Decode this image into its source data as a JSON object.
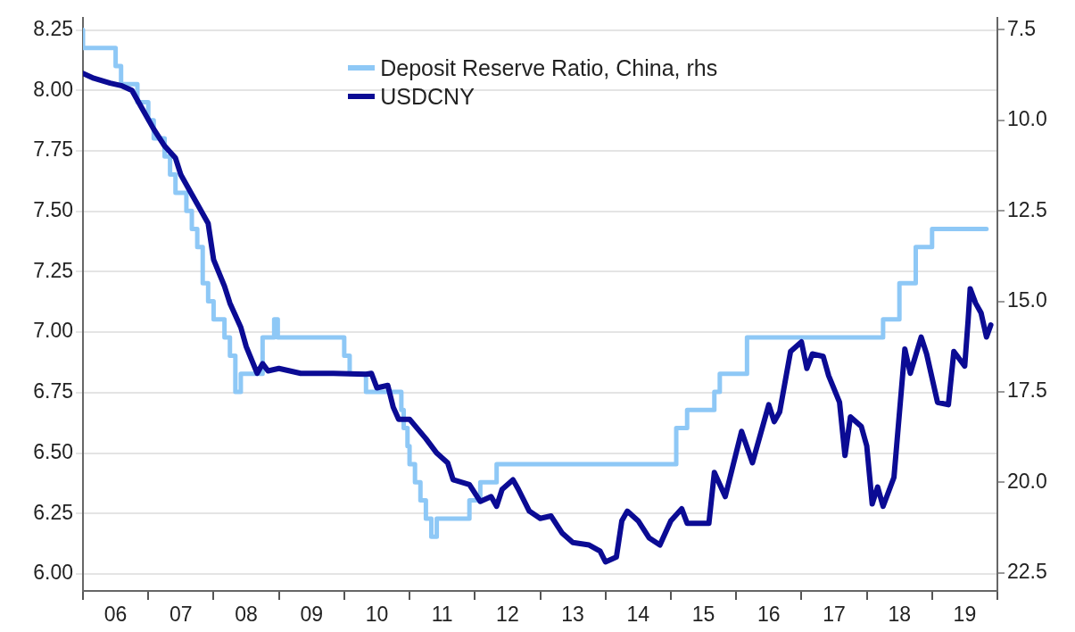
{
  "chart_data": {
    "type": "line",
    "xlim": [
      "2006-01",
      "2020-01"
    ],
    "xticks": [
      {
        "value": "2006-01",
        "label": null
      },
      {
        "value": "2006-07",
        "label": "06"
      },
      {
        "value": "2007-01",
        "label": null
      },
      {
        "value": "2007-07",
        "label": "07"
      },
      {
        "value": "2008-01",
        "label": null
      },
      {
        "value": "2008-07",
        "label": "08"
      },
      {
        "value": "2009-01",
        "label": null
      },
      {
        "value": "2009-07",
        "label": "09"
      },
      {
        "value": "2010-01",
        "label": null
      },
      {
        "value": "2010-07",
        "label": "10"
      },
      {
        "value": "2011-01",
        "label": null
      },
      {
        "value": "2011-07",
        "label": "11"
      },
      {
        "value": "2012-01",
        "label": null
      },
      {
        "value": "2012-07",
        "label": "12"
      },
      {
        "value": "2013-01",
        "label": null
      },
      {
        "value": "2013-07",
        "label": "13"
      },
      {
        "value": "2014-01",
        "label": null
      },
      {
        "value": "2014-07",
        "label": "14"
      },
      {
        "value": "2015-01",
        "label": null
      },
      {
        "value": "2015-07",
        "label": "15"
      },
      {
        "value": "2016-01",
        "label": null
      },
      {
        "value": "2016-07",
        "label": "16"
      },
      {
        "value": "2017-01",
        "label": null
      },
      {
        "value": "2017-07",
        "label": "17"
      },
      {
        "value": "2018-01",
        "label": null
      },
      {
        "value": "2018-07",
        "label": "18"
      },
      {
        "value": "2019-01",
        "label": null
      },
      {
        "value": "2019-07",
        "label": "19"
      },
      {
        "value": "2020-01",
        "label": null
      }
    ],
    "ylim": [
      5.93,
      8.3
    ],
    "yticks": [
      {
        "value": 6.0,
        "label": "6.00"
      },
      {
        "value": 6.25,
        "label": "6.25"
      },
      {
        "value": 6.5,
        "label": "6.50"
      },
      {
        "value": 6.75,
        "label": "6.75"
      },
      {
        "value": 7.0,
        "label": "7.00"
      },
      {
        "value": 7.25,
        "label": "7.25"
      },
      {
        "value": 7.5,
        "label": "7.50"
      },
      {
        "value": 7.75,
        "label": "7.75"
      },
      {
        "value": 8.0,
        "label": "8.00"
      },
      {
        "value": 8.25,
        "label": "8.25"
      }
    ],
    "y2lim": [
      23.0,
      7.17
    ],
    "y2ticks": [
      {
        "value": 7.5,
        "label": "7.5"
      },
      {
        "value": 10,
        "label": "10.0"
      },
      {
        "value": 12.5,
        "label": "12.5"
      },
      {
        "value": 15,
        "label": "15.0"
      },
      {
        "value": 17.5,
        "label": "17.5"
      },
      {
        "value": 20,
        "label": "20.0"
      },
      {
        "value": 22.5,
        "label": "22.5"
      }
    ],
    "grid": "y",
    "legend": "top",
    "series": [
      {
        "name": "Deposit Reserve Ratio, China, rhs",
        "type": "step",
        "axis": "y2",
        "color": "#8ec8f6",
        "x": [
          "2006-01",
          "2006-07",
          "2006-08",
          "2006-11",
          "2007-01",
          "2007-02",
          "2007-04",
          "2007-05",
          "2007-06",
          "2007-08",
          "2007-09",
          "2007-10",
          "2007-11",
          "2007-12",
          "2008-01",
          "2008-03",
          "2008-04",
          "2008-05",
          "2008-06",
          "2008-10",
          "2008-12-05",
          "2008-12-25",
          "2010-01",
          "2010-02",
          "2010-05",
          "2010-11-16",
          "2010-11-29",
          "2010-12-20",
          "2011-01",
          "2011-02",
          "2011-03",
          "2011-04",
          "2011-05",
          "2011-06",
          "2011-12",
          "2012-02",
          "2012-05",
          "2015-02",
          "2015-04",
          "2015-09",
          "2015-10",
          "2016-03",
          "2018-04",
          "2018-07",
          "2018-10",
          "2019-01",
          "2019-09",
          "2019-11"
        ],
        "values": [
          7.5,
          8.0,
          8.5,
          9.0,
          9.5,
          10.0,
          10.5,
          11.0,
          11.5,
          12.0,
          12.5,
          13.0,
          13.5,
          14.5,
          15.0,
          15.5,
          16.0,
          16.5,
          17.5,
          17.0,
          16.0,
          15.5,
          16.0,
          16.5,
          17.0,
          17.5,
          18.0,
          18.5,
          19.0,
          19.5,
          20.0,
          20.5,
          21.0,
          21.5,
          21.0,
          20.5,
          20.0,
          19.5,
          18.5,
          18.0,
          17.5,
          17.0,
          16.0,
          15.5,
          14.5,
          13.5,
          13.0,
          13.0
        ]
      },
      {
        "name": "USDCNY",
        "color": "#0b0b94",
        "x": [
          "2006-01",
          "2006-03",
          "2006-06",
          "2006-08",
          "2006-10",
          "2006-12",
          "2007-02",
          "2007-04",
          "2007-06",
          "2007-07",
          "2007-09",
          "2007-10",
          "2007-12",
          "2008-01",
          "2008-03",
          "2008-04",
          "2008-06",
          "2008-07",
          "2008-09",
          "2008-10",
          "2008-11",
          "2009-01",
          "2009-05",
          "2009-11",
          "2010-05",
          "2010-06",
          "2010-07",
          "2010-09",
          "2010-10",
          "2010-11",
          "2011-01",
          "2011-04",
          "2011-06",
          "2011-08",
          "2011-09",
          "2011-12",
          "2012-02",
          "2012-04",
          "2012-05",
          "2012-06",
          "2012-08",
          "2012-09",
          "2012-11",
          "2013-01",
          "2013-03",
          "2013-05",
          "2013-07",
          "2013-10",
          "2013-12",
          "2014-01",
          "2014-03",
          "2014-04",
          "2014-05",
          "2014-07",
          "2014-09",
          "2014-11",
          "2015-01",
          "2015-03",
          "2015-04",
          "2015-08",
          "2015-09",
          "2015-11",
          "2016-02",
          "2016-04",
          "2016-07",
          "2016-08",
          "2016-09",
          "2016-11",
          "2017-01",
          "2017-02",
          "2017-03",
          "2017-05",
          "2017-06",
          "2017-08",
          "2017-09",
          "2017-10",
          "2017-12",
          "2018-01",
          "2018-02",
          "2018-03",
          "2018-04",
          "2018-06",
          "2018-08",
          "2018-09",
          "2018-11",
          "2018-12",
          "2019-02",
          "2019-04",
          "2019-05",
          "2019-07",
          "2019-07-20",
          "2019-08",
          "2019-09",
          "2019-10",
          "2019-11",
          "2019-11-25"
        ],
        "values": [
          8.07,
          8.05,
          8.03,
          8.02,
          8.0,
          7.92,
          7.84,
          7.77,
          7.72,
          7.65,
          7.57,
          7.53,
          7.45,
          7.3,
          7.19,
          7.12,
          7.02,
          6.94,
          6.83,
          6.87,
          6.84,
          6.85,
          6.83,
          6.83,
          6.826,
          6.83,
          6.77,
          6.78,
          6.69,
          6.64,
          6.64,
          6.56,
          6.5,
          6.46,
          6.39,
          6.37,
          6.3,
          6.32,
          6.28,
          6.35,
          6.39,
          6.35,
          6.26,
          6.23,
          6.24,
          6.17,
          6.13,
          6.12,
          6.095,
          6.05,
          6.07,
          6.22,
          6.26,
          6.22,
          6.15,
          6.12,
          6.22,
          6.27,
          6.21,
          6.21,
          6.42,
          6.32,
          6.59,
          6.46,
          6.7,
          6.63,
          6.67,
          6.92,
          6.96,
          6.85,
          6.91,
          6.9,
          6.82,
          6.71,
          6.49,
          6.65,
          6.61,
          6.53,
          6.29,
          6.36,
          6.28,
          6.4,
          6.93,
          6.83,
          6.98,
          6.91,
          6.71,
          6.7,
          6.92,
          6.86,
          7.05,
          7.18,
          7.12,
          7.08,
          6.98,
          7.03
        ]
      }
    ]
  }
}
